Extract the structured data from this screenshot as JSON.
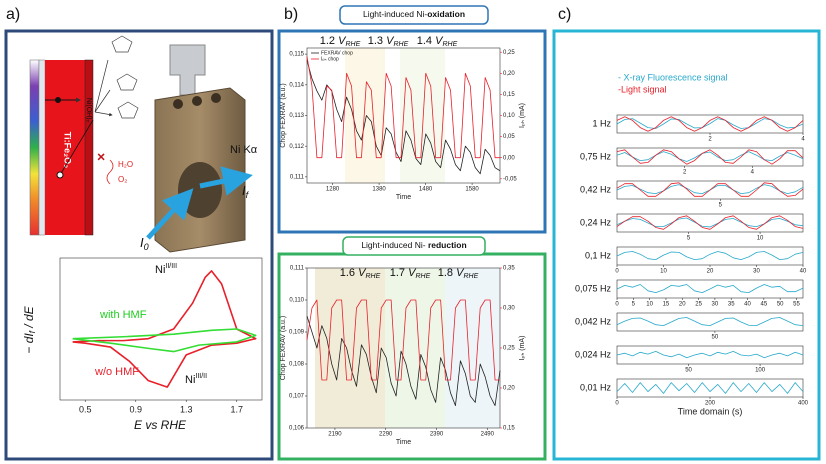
{
  "panel_labels": [
    "a)",
    "b)",
    "c)"
  ],
  "panel_a": {
    "ti_fe2o3": "Ti:Fe₂O₃",
    "ni_oh2": "Ni(OH)₂",
    "h2o": "H₂O",
    "o2": "O₂",
    "ni_ka": "Ni Kα",
    "i_f": {
      "base": "I",
      "sub": "f"
    },
    "i_0": {
      "base": "I",
      "sub": "0"
    }
  },
  "panel_b": {
    "top_title": "Light-induced Ni-",
    "top_title_bold": "oxidation",
    "bottom_title": "Light-induced Ni- ",
    "bottom_title_bold": "reduction"
  },
  "panel_c": {
    "legend_xrf": "- X-ray Fluorescence signal",
    "legend_light": "-Light signal"
  },
  "chart_data": [
    {
      "type": "line",
      "x_label": "E vs RHE",
      "y_label": {
        "base": "− dI",
        "sub": "f",
        "rest": " / dE"
      },
      "annotations": [
        {
          "base": "Ni",
          "sup": "II/III"
        },
        {
          "base": "with HMF"
        },
        {
          "base": "w/o HMF"
        },
        {
          "base": "Ni",
          "sup": "III/II"
        }
      ],
      "xlim": [
        0.3,
        1.9
      ],
      "ylim": [
        -0.9,
        1.3
      ],
      "xticks": [
        0.5,
        0.9,
        1.3,
        1.7
      ],
      "series": [
        {
          "name": "w/o HMF",
          "color": "#e8202a",
          "x": [
            0.4,
            0.6,
            0.8,
            1.0,
            1.2,
            1.35,
            1.45,
            1.5,
            1.58,
            1.7,
            1.85,
            1.7,
            1.5,
            1.3,
            1.15,
            1.0,
            0.85,
            0.7,
            0.5,
            0.4
          ],
          "values": [
            0.0,
            0.02,
            0.02,
            0.05,
            0.2,
            0.6,
            1.0,
            1.1,
            0.9,
            0.2,
            0.05,
            -0.02,
            -0.05,
            -0.2,
            -0.7,
            -0.6,
            -0.3,
            -0.08,
            -0.02,
            0.0
          ]
        },
        {
          "name": "with HMF",
          "color": "#33dd33",
          "x": [
            0.4,
            0.8,
            1.2,
            1.5,
            1.7,
            1.85,
            1.7,
            1.4,
            1.2,
            1.0,
            0.7,
            0.4
          ],
          "values": [
            0.05,
            0.08,
            0.12,
            0.18,
            0.2,
            0.1,
            0.0,
            -0.05,
            -0.15,
            -0.1,
            -0.02,
            0.05
          ]
        }
      ]
    },
    {
      "type": "line",
      "x_label": "Time",
      "y_label": "Chop FEXRAV (a.u.)",
      "y2_label": "Iₚₕ (mA)",
      "legend": "upper left",
      "annotations": [
        {
          "base": "1.2 ",
          "unit": "V",
          "sub": "RHE"
        },
        {
          "base": "1.3 ",
          "unit": "V",
          "sub": "RHE"
        },
        {
          "base": "1.4 ",
          "unit": "V",
          "sub": "RHE"
        }
      ],
      "xlim": [
        1225,
        1640
      ],
      "ylim": [
        0.1108,
        0.1152
      ],
      "y2lim": [
        -0.06,
        0.26
      ],
      "xticks": [
        1280,
        1380,
        1480,
        1580
      ],
      "yticks": [
        {
          "value": 0.111,
          "label": "0,111"
        },
        {
          "value": 0.112,
          "label": "0,112"
        },
        {
          "value": 0.113,
          "label": "0,113"
        },
        {
          "value": 0.114,
          "label": "0,114"
        },
        {
          "value": 0.115,
          "label": "0,115"
        }
      ],
      "y2ticks": [
        {
          "value": -0.05,
          "label": "-0,05"
        },
        {
          "value": 0.0,
          "label": "0,00"
        },
        {
          "value": 0.05,
          "label": "0,05"
        },
        {
          "value": 0.1,
          "label": "0,10"
        },
        {
          "value": 0.15,
          "label": "0,15"
        },
        {
          "value": 0.2,
          "label": "0,20"
        },
        {
          "value": 0.25,
          "label": "0,25"
        }
      ],
      "series": [
        {
          "name": "FEXRAV chop",
          "color": "#222222",
          "values": [
            0.1148,
            0.1142,
            0.1138,
            0.1135,
            0.114,
            0.1138,
            0.1132,
            0.1128,
            0.1136,
            0.1132,
            0.1125,
            0.1122,
            0.113,
            0.1128,
            0.112,
            0.1117,
            0.1126,
            0.1124,
            0.1118,
            0.1115,
            0.1125,
            0.1122,
            0.1116,
            0.1114,
            0.1124,
            0.1121,
            0.1115,
            0.1113,
            0.1122,
            0.1119,
            0.1114,
            0.1112,
            0.112,
            0.1118,
            0.1113,
            0.1111,
            0.1119,
            0.1117,
            0.1113,
            0.1112
          ]
        },
        {
          "name": "Iₚₕ chop",
          "color": "#e8202a",
          "axis": "y2",
          "values": [
            0.24,
            0.17,
            0.0,
            0.0,
            0.17,
            0.16,
            0.0,
            0.0,
            0.2,
            0.17,
            0.0,
            0.0,
            0.18,
            0.16,
            0.0,
            0.0,
            0.2,
            0.17,
            0.0,
            0.0,
            0.19,
            0.16,
            0.0,
            0.0,
            0.2,
            0.17,
            0.0,
            0.0,
            0.19,
            0.16,
            0.0,
            0.0,
            0.2,
            0.17,
            0.0,
            0.0,
            0.19,
            0.16,
            0.0,
            0.0
          ]
        }
      ]
    },
    {
      "type": "line",
      "x_label": "Time",
      "y_label": "Chop FEXRAV (a.u.)",
      "y2_label": "Iₚₕ (mA)",
      "annotations": [
        {
          "base": "1.6 ",
          "unit": "V",
          "sub": "RHE"
        },
        {
          "base": "1.7 ",
          "unit": "V",
          "sub": "RHE"
        },
        {
          "base": "1.8 ",
          "unit": "V",
          "sub": "RHE"
        }
      ],
      "xlim": [
        2135,
        2515
      ],
      "ylim": [
        0.106,
        0.111
      ],
      "y2lim": [
        0.15,
        0.35
      ],
      "xticks": [
        2190,
        2290,
        2390,
        2490
      ],
      "yticks": [
        {
          "value": 0.106,
          "label": "0,106"
        },
        {
          "value": 0.107,
          "label": "0,107"
        },
        {
          "value": 0.108,
          "label": "0,108"
        },
        {
          "value": 0.109,
          "label": "0,109"
        },
        {
          "value": 0.11,
          "label": "0,110"
        },
        {
          "value": 0.111,
          "label": "0,111"
        }
      ],
      "y2ticks": [
        {
          "value": 0.15,
          "label": "0,15"
        },
        {
          "value": 0.2,
          "label": "0,20"
        },
        {
          "value": 0.25,
          "label": "0,25"
        },
        {
          "value": 0.3,
          "label": "0,30"
        },
        {
          "value": 0.35,
          "label": "0,35"
        }
      ],
      "series": [
        {
          "color": "#222222",
          "values": [
            0.1095,
            0.109,
            0.1085,
            0.1092,
            0.1088,
            0.108,
            0.1075,
            0.1088,
            0.1085,
            0.1078,
            0.1073,
            0.1086,
            0.1083,
            0.1076,
            0.1071,
            0.1085,
            0.1082,
            0.1074,
            0.107,
            0.1084,
            0.108,
            0.1073,
            0.1069,
            0.1083,
            0.1079,
            0.1072,
            0.1068,
            0.1082,
            0.1078,
            0.1071,
            0.1067,
            0.1081,
            0.1077,
            0.107,
            0.1068,
            0.108,
            0.1076,
            0.107,
            0.1067,
            0.1078
          ]
        },
        {
          "color": "#e8202a",
          "axis": "y2",
          "values": [
            0.26,
            0.3,
            0.31,
            0.21,
            0.21,
            0.3,
            0.31,
            0.31,
            0.21,
            0.21,
            0.3,
            0.31,
            0.31,
            0.21,
            0.21,
            0.3,
            0.31,
            0.31,
            0.21,
            0.21,
            0.3,
            0.31,
            0.31,
            0.21,
            0.21,
            0.3,
            0.31,
            0.31,
            0.21,
            0.21,
            0.3,
            0.31,
            0.31,
            0.21,
            0.21,
            0.3,
            0.31,
            0.31,
            0.21,
            0.21
          ]
        }
      ]
    },
    {
      "type": "line",
      "title": "1 Hz",
      "xlim": [
        0,
        4
      ],
      "ylim": [
        0,
        1
      ],
      "xticks": [
        2,
        4
      ],
      "series": [
        {
          "color": "#29a9cc",
          "values": [
            0.5,
            0.75,
            0.8,
            0.55,
            0.3,
            0.25,
            0.5,
            0.78,
            0.75,
            0.5,
            0.28,
            0.3,
            0.52,
            0.8,
            0.7,
            0.45,
            0.25,
            0.3,
            0.55,
            0.8,
            0.72,
            0.45,
            0.28,
            0.32,
            0.5
          ]
        },
        {
          "color": "#e8202a",
          "values": [
            0.7,
            0.9,
            0.7,
            0.3,
            0.1,
            0.3,
            0.7,
            0.9,
            0.7,
            0.3,
            0.1,
            0.3,
            0.7,
            0.9,
            0.7,
            0.3,
            0.1,
            0.3,
            0.7,
            0.9,
            0.7,
            0.3,
            0.1,
            0.3,
            0.7
          ]
        }
      ]
    },
    {
      "type": "line",
      "title": "0,75 Hz",
      "xlim": [
        0,
        5.5
      ],
      "ylim": [
        0,
        1
      ],
      "xticks": [
        2,
        4
      ],
      "series": [
        {
          "color": "#29a9cc",
          "values": [
            0.6,
            0.75,
            0.5,
            0.3,
            0.35,
            0.6,
            0.8,
            0.65,
            0.4,
            0.25,
            0.45,
            0.7,
            0.78,
            0.5,
            0.3,
            0.35,
            0.6,
            0.8,
            0.6,
            0.35,
            0.3,
            0.55,
            0.75,
            0.6,
            0.4
          ]
        },
        {
          "color": "#e8202a",
          "values": [
            0.8,
            0.9,
            0.5,
            0.15,
            0.2,
            0.6,
            0.9,
            0.8,
            0.4,
            0.1,
            0.3,
            0.7,
            0.9,
            0.6,
            0.2,
            0.15,
            0.5,
            0.9,
            0.8,
            0.35,
            0.1,
            0.4,
            0.85,
            0.85,
            0.45
          ]
        }
      ]
    },
    {
      "type": "line",
      "title": "0,42 Hz",
      "xlim": [
        0,
        9
      ],
      "ylim": [
        0,
        1
      ],
      "xticks": [
        5
      ],
      "series": [
        {
          "color": "#29a9cc",
          "values": [
            0.5,
            0.7,
            0.75,
            0.55,
            0.35,
            0.3,
            0.45,
            0.7,
            0.8,
            0.6,
            0.35,
            0.3,
            0.5,
            0.75,
            0.75,
            0.5,
            0.3,
            0.35,
            0.6,
            0.8,
            0.7,
            0.45,
            0.3,
            0.4,
            0.65
          ]
        },
        {
          "color": "#e8202a",
          "values": [
            0.6,
            0.85,
            0.85,
            0.5,
            0.15,
            0.15,
            0.45,
            0.85,
            0.9,
            0.55,
            0.15,
            0.15,
            0.5,
            0.85,
            0.85,
            0.5,
            0.15,
            0.15,
            0.5,
            0.9,
            0.85,
            0.45,
            0.15,
            0.2,
            0.55
          ]
        }
      ]
    },
    {
      "type": "line",
      "title": "0,24 Hz",
      "xlim": [
        0,
        13
      ],
      "ylim": [
        0,
        1
      ],
      "xticks": [
        5,
        10
      ],
      "series": [
        {
          "color": "#29a9cc",
          "values": [
            0.4,
            0.6,
            0.75,
            0.7,
            0.5,
            0.3,
            0.3,
            0.5,
            0.72,
            0.78,
            0.55,
            0.32,
            0.28,
            0.48,
            0.7,
            0.75,
            0.55,
            0.35,
            0.3,
            0.45,
            0.7,
            0.75,
            0.6,
            0.4,
            0.35
          ]
        },
        {
          "color": "#e8202a",
          "values": [
            0.3,
            0.6,
            0.85,
            0.85,
            0.6,
            0.25,
            0.15,
            0.45,
            0.8,
            0.9,
            0.6,
            0.25,
            0.15,
            0.45,
            0.8,
            0.9,
            0.6,
            0.25,
            0.15,
            0.45,
            0.8,
            0.9,
            0.65,
            0.3,
            0.2
          ]
        }
      ]
    },
    {
      "type": "line",
      "title": "0,1 Hz",
      "xlim": [
        0,
        40
      ],
      "ylim": [
        0,
        1
      ],
      "xticks": [
        0,
        10,
        20,
        30,
        40
      ],
      "series": [
        {
          "color": "#29a9cc",
          "values": [
            0.5,
            0.7,
            0.75,
            0.6,
            0.35,
            0.3,
            0.55,
            0.72,
            0.7,
            0.45,
            0.3,
            0.35,
            0.6,
            0.75,
            0.65,
            0.4,
            0.3,
            0.45,
            0.7,
            0.75,
            0.55,
            0.3,
            0.35,
            0.6,
            0.7
          ]
        }
      ]
    },
    {
      "type": "line",
      "title": "0,075 Hz",
      "xlim": [
        0,
        57
      ],
      "ylim": [
        0,
        1
      ],
      "xticks": [
        0,
        5,
        10,
        15,
        20,
        25,
        30,
        35,
        40,
        45,
        50,
        55
      ],
      "series": [
        {
          "color": "#29a9cc",
          "values": [
            0.5,
            0.7,
            0.6,
            0.75,
            0.4,
            0.3,
            0.45,
            0.7,
            0.65,
            0.75,
            0.4,
            0.3,
            0.5,
            0.72,
            0.6,
            0.7,
            0.35,
            0.3,
            0.55,
            0.75,
            0.6,
            0.65,
            0.35,
            0.35,
            0.55
          ]
        }
      ]
    },
    {
      "type": "line",
      "title": "0,042 Hz",
      "xlim": [
        0,
        95
      ],
      "ylim": [
        0,
        1
      ],
      "xticks": [
        50
      ],
      "series": [
        {
          "color": "#29a9cc",
          "values": [
            0.35,
            0.55,
            0.7,
            0.72,
            0.55,
            0.35,
            0.3,
            0.5,
            0.7,
            0.75,
            0.55,
            0.35,
            0.3,
            0.5,
            0.7,
            0.72,
            0.5,
            0.32,
            0.3,
            0.5,
            0.7,
            0.75,
            0.55,
            0.35,
            0.3
          ]
        }
      ]
    },
    {
      "type": "line",
      "title": "0,024 Hz",
      "xlim": [
        0,
        130
      ],
      "ylim": [
        0,
        1
      ],
      "xticks": [
        50,
        100
      ],
      "series": [
        {
          "color": "#29a9cc",
          "values": [
            0.5,
            0.6,
            0.45,
            0.65,
            0.55,
            0.7,
            0.5,
            0.4,
            0.55,
            0.35,
            0.5,
            0.6,
            0.45,
            0.65,
            0.55,
            0.7,
            0.5,
            0.45,
            0.55,
            0.35,
            0.5,
            0.6,
            0.45,
            0.65,
            0.5
          ]
        }
      ]
    },
    {
      "type": "line",
      "title": "0,01 Hz",
      "x_label": "Time domain (s)",
      "xlim": [
        0,
        400
      ],
      "ylim": [
        0,
        1
      ],
      "xticks": [
        0,
        200,
        400
      ],
      "series": [
        {
          "color": "#29a9cc",
          "values": [
            0.3,
            0.75,
            0.25,
            0.8,
            0.3,
            0.7,
            0.2,
            0.8,
            0.35,
            0.75,
            0.25,
            0.8,
            0.3,
            0.7,
            0.2,
            0.8,
            0.3,
            0.75,
            0.25,
            0.8,
            0.3,
            0.7,
            0.2,
            0.8,
            0.3
          ]
        }
      ]
    }
  ]
}
